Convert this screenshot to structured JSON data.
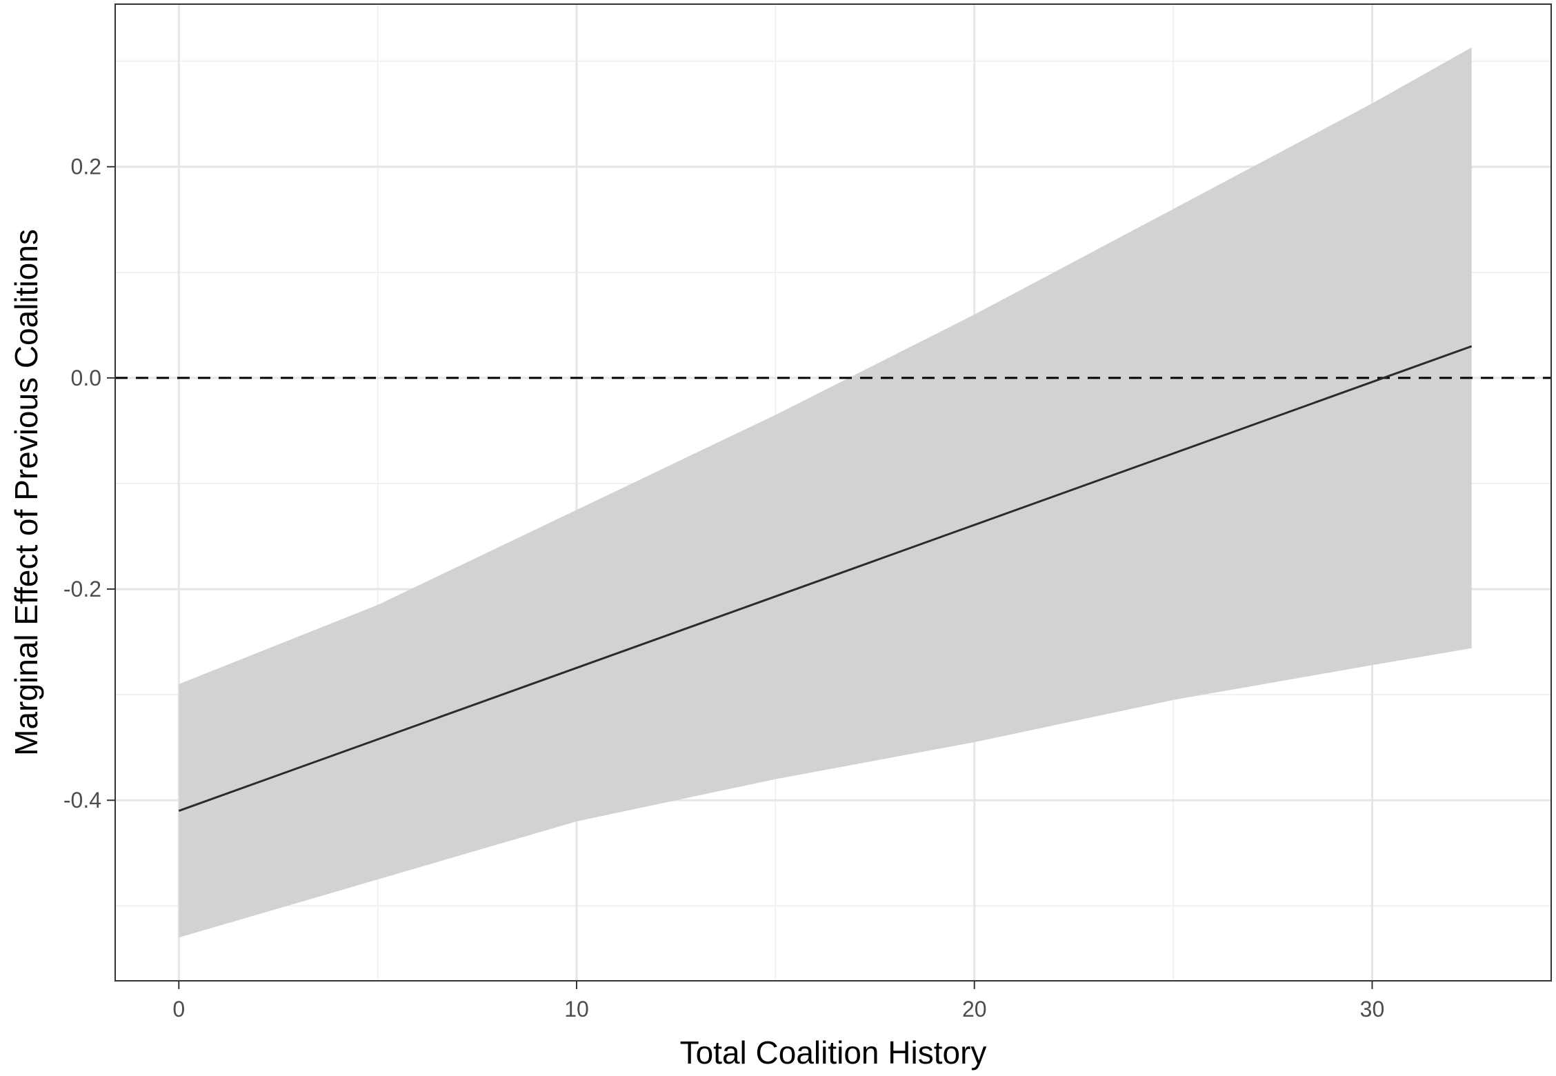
{
  "chart_data": {
    "type": "line",
    "xlabel": "Total Coalition History",
    "ylabel": "Marginal Effect of Previous Coalitions",
    "xlim": [
      -1.6,
      34.5
    ],
    "ylim": [
      -0.571,
      0.354
    ],
    "x_ticks": [
      0,
      10,
      20,
      30
    ],
    "x_tick_labels": [
      "0",
      "10",
      "20",
      "30"
    ],
    "y_ticks": [
      -0.4,
      -0.2,
      0.0,
      0.2
    ],
    "y_tick_labels": [
      "-0.4",
      "-0.2",
      "0.0",
      "0.2"
    ],
    "x_minor_gridlines": [
      5,
      15,
      25
    ],
    "y_minor_gridlines": [
      -0.5,
      -0.3,
      -0.1,
      0.1,
      0.3
    ],
    "grid": true,
    "reference_line": {
      "y": 0.0,
      "style": "dashed"
    },
    "series": [
      {
        "x": [
          0,
          32.5
        ],
        "y": [
          -0.41,
          0.03
        ],
        "color": "#2b2b2b"
      }
    ],
    "confidence_band": {
      "x": [
        0,
        5,
        10,
        15,
        20,
        25,
        30,
        32.5
      ],
      "lower": [
        -0.53,
        -0.475,
        -0.42,
        -0.38,
        -0.345,
        -0.305,
        -0.272,
        -0.256
      ],
      "upper": [
        -0.29,
        -0.215,
        -0.125,
        -0.035,
        0.06,
        0.16,
        0.26,
        0.313
      ],
      "color": "#d2d2d2"
    },
    "colors": {
      "panel_background": "#ffffff",
      "major_grid": "#e6e6e6",
      "minor_grid": "#f1f1f1",
      "panel_border": "#333333",
      "text": "#000000",
      "tick_text": "#4d4d4d"
    }
  }
}
